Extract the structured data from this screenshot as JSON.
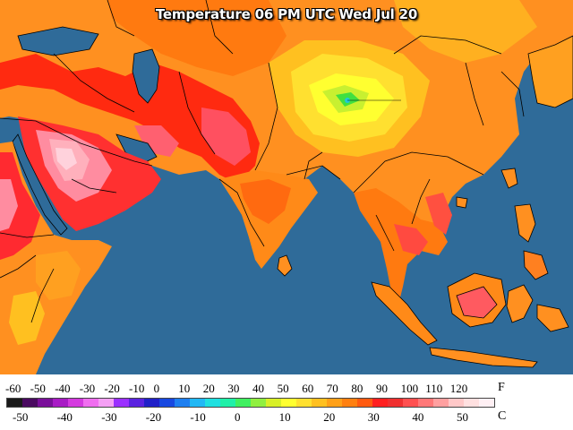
{
  "map": {
    "title": "Temperature 06 PM UTC Wed Jul 20",
    "ocean_color": "#2f6b99",
    "border_color": "#000000"
  },
  "legend": {
    "fahrenheit_labels": [
      "-60",
      "-50",
      "-40",
      "-30",
      "-20",
      "-10",
      "0",
      "10",
      "20",
      "30",
      "40",
      "50",
      "60",
      "70",
      "80",
      "90",
      "100",
      "110",
      "120"
    ],
    "fahrenheit_unit": "F",
    "celsius_labels": [
      "-50",
      "-40",
      "-30",
      "-20",
      "-10",
      "0",
      "10",
      "20",
      "30",
      "40",
      "50"
    ],
    "celsius_unit": "C",
    "colors": [
      "#1a1a1a",
      "#4a0a60",
      "#7a0f9a",
      "#a81bc5",
      "#d43adf",
      "#f06ef0",
      "#f5a0f5",
      "#9b30ff",
      "#5a22e0",
      "#2020c8",
      "#1848e0",
      "#1e7ff0",
      "#22b8f5",
      "#20e0e0",
      "#20f0a8",
      "#40f060",
      "#90f040",
      "#d8f028",
      "#ffff30",
      "#ffe030",
      "#ffc020",
      "#ffa018",
      "#ff8010",
      "#ff5a10",
      "#ff2020",
      "#f03030",
      "#ff5050",
      "#ff7878",
      "#ffa0a0",
      "#ffc8c8",
      "#ffe0e0",
      "#fff0f4"
    ]
  }
}
